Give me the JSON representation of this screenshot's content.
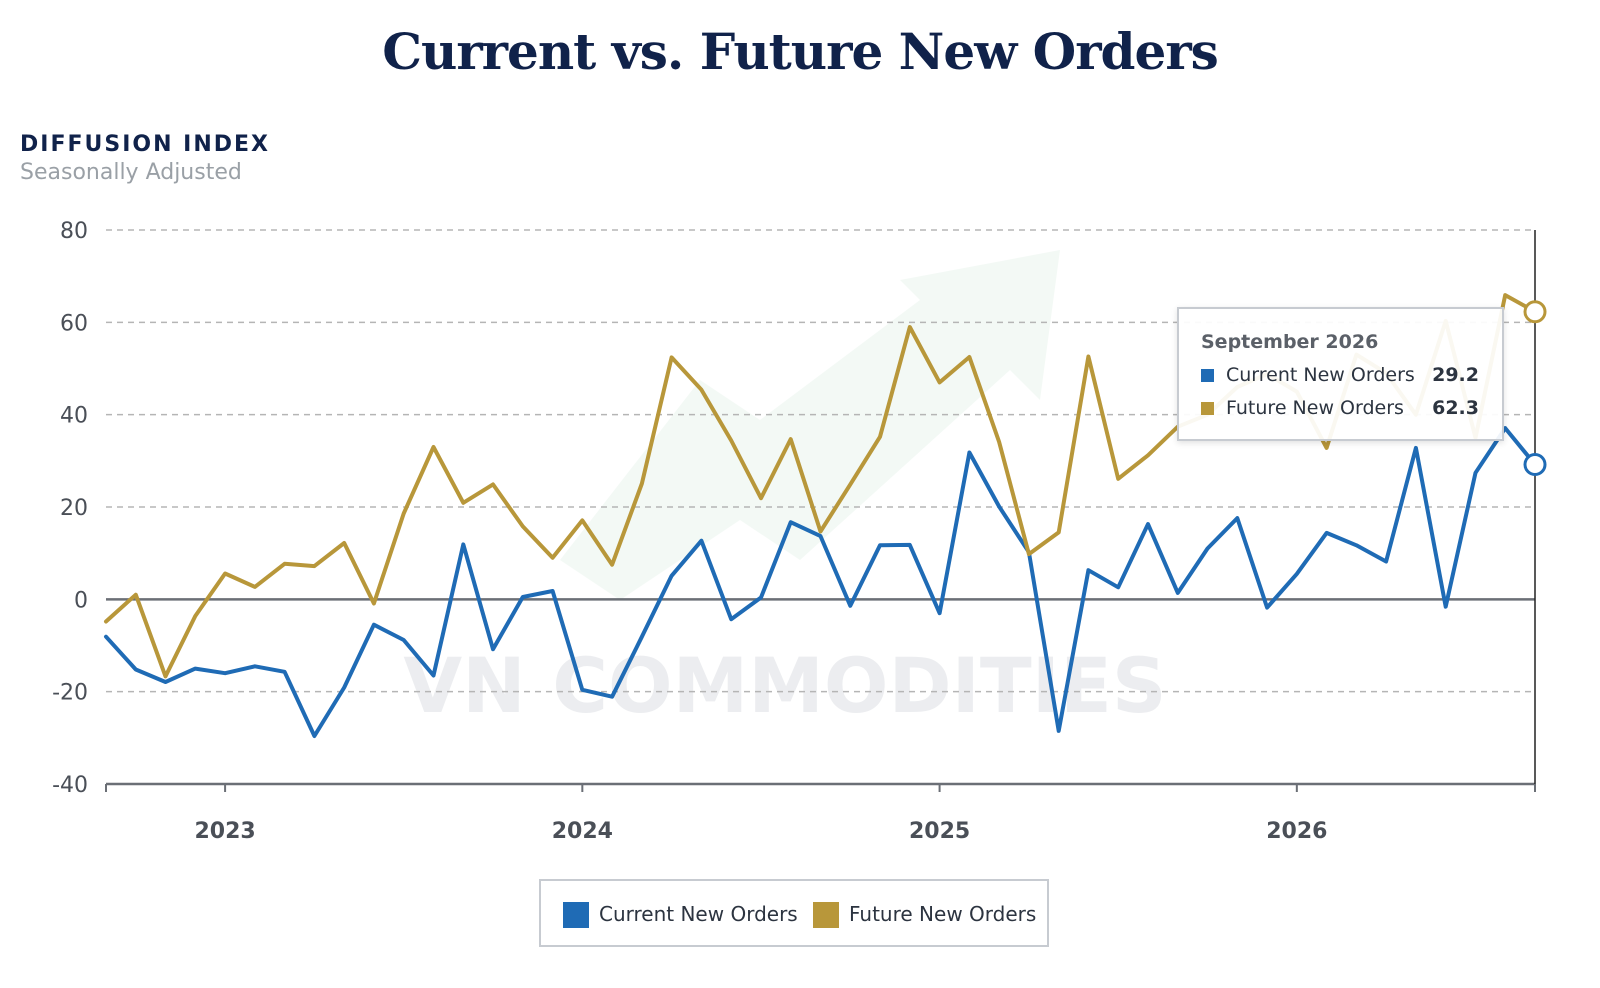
{
  "title": "Current vs. Future New Orders",
  "y_axis": {
    "title": "DIFFUSION INDEX",
    "subtitle": "Seasonally Adjusted"
  },
  "watermark": "VN COMMODITIES",
  "colors": {
    "current": "#1f6bb5",
    "future": "#b8973a",
    "title": "#10224a",
    "grid": "#b5b5b5"
  },
  "tooltip": {
    "date": "September 2026",
    "rows": [
      {
        "label": "Current New Orders",
        "value": "29.2",
        "color": "#1f6bb5"
      },
      {
        "label": "Future New Orders",
        "value": "62.3",
        "color": "#b8973a"
      }
    ]
  },
  "legend": [
    {
      "label": "Current New Orders",
      "color": "#1f6bb5"
    },
    {
      "label": "Future New Orders",
      "color": "#b8973a"
    }
  ],
  "chart_data": {
    "type": "line",
    "title": "Current vs. Future New Orders",
    "ylabel": "DIFFUSION INDEX",
    "ylim": [
      -40,
      80
    ],
    "yticks": [
      -40,
      -20,
      0,
      20,
      40,
      60,
      80
    ],
    "xlim": [
      "2022-09",
      "2026-09"
    ],
    "xticks": [
      {
        "date": "2023-01",
        "label": "2023"
      },
      {
        "date": "2024-01",
        "label": "2024"
      },
      {
        "date": "2025-01",
        "label": "2025"
      },
      {
        "date": "2026-01",
        "label": "2026"
      }
    ],
    "grid": true,
    "legend_position": "bottom",
    "x": [
      "2022-09",
      "2022-10",
      "2022-11",
      "2022-12",
      "2023-01",
      "2023-02",
      "2023-03",
      "2023-04",
      "2023-05",
      "2023-06",
      "2023-07",
      "2023-08",
      "2023-09",
      "2023-10",
      "2023-11",
      "2023-12",
      "2024-01",
      "2024-02",
      "2024-03",
      "2024-04",
      "2024-05",
      "2024-06",
      "2024-07",
      "2024-08",
      "2024-09",
      "2024-10",
      "2024-11",
      "2024-12",
      "2025-01",
      "2025-02",
      "2025-03",
      "2025-04",
      "2025-05",
      "2025-06",
      "2025-07",
      "2025-08",
      "2025-09",
      "2025-10",
      "2025-11",
      "2025-12",
      "2026-01",
      "2026-02",
      "2026-03",
      "2026-04",
      "2026-05",
      "2026-06",
      "2026-07",
      "2026-08",
      "2026-09"
    ],
    "series": [
      {
        "name": "Current New Orders",
        "values": [
          -8.1,
          -15.2,
          -17.9,
          -15.0,
          -16.0,
          -14.5,
          -15.7,
          -29.6,
          -19.1,
          -5.5,
          -8.8,
          -16.5,
          11.9,
          -10.8,
          0.5,
          1.8,
          -19.6,
          -21.1,
          -8.1,
          5.1,
          12.7,
          -4.3,
          0.4,
          16.7,
          13.7,
          -1.4,
          11.7,
          11.8,
          -3.0,
          31.8,
          20.1,
          10.2,
          -28.5,
          6.3,
          2.6,
          16.3,
          1.4,
          11.0,
          17.6,
          -1.8,
          5.5,
          14.4,
          11.7,
          8.2,
          32.8,
          -1.6,
          27.4,
          37.1,
          29.2
        ]
      },
      {
        "name": "Future New Orders",
        "values": [
          -4.8,
          1.0,
          -16.7,
          -3.6,
          5.6,
          2.7,
          7.7,
          7.2,
          12.2,
          -0.9,
          18.6,
          33.0,
          20.9,
          24.9,
          15.8,
          9.0,
          17.1,
          7.5,
          25.1,
          52.4,
          45.4,
          34.4,
          21.9,
          34.7,
          14.7,
          24.9,
          35.2,
          59.0,
          47.0,
          52.5,
          34.1,
          9.8,
          14.5,
          52.6,
          26.1,
          31.2,
          37.4,
          40.0,
          46.0,
          48.8,
          45.0,
          32.8,
          53.0,
          49.0,
          40.0,
          60.3,
          35.0,
          65.9,
          62.3
        ]
      }
    ]
  }
}
